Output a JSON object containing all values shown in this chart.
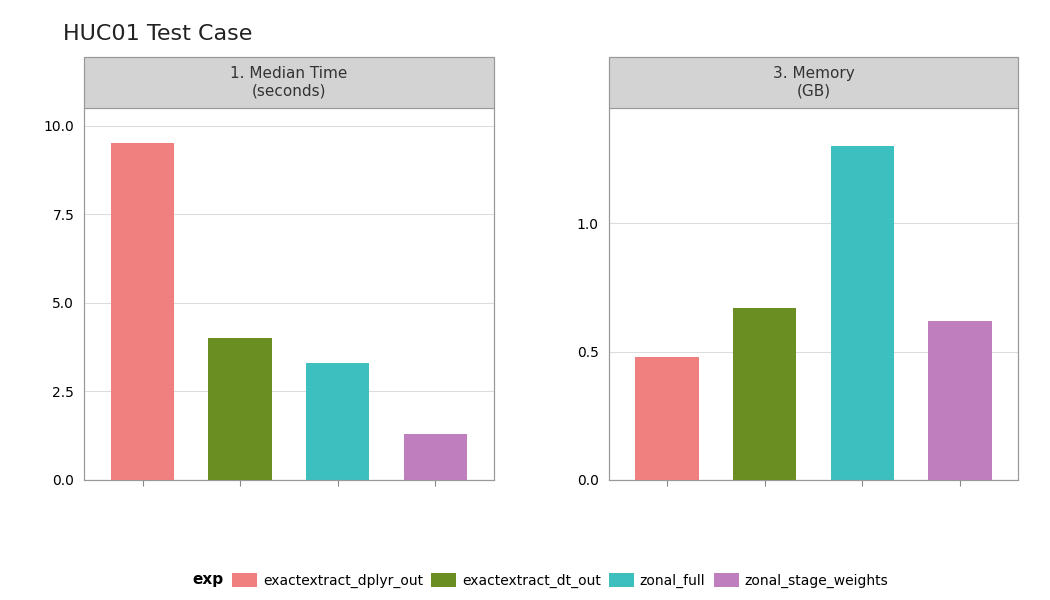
{
  "title": "HUC01 Test Case",
  "panels": [
    {
      "label": "1. Median Time\n(seconds)",
      "values": [
        9.5,
        4.0,
        3.3,
        1.3
      ],
      "ylim": [
        0,
        10.5
      ],
      "yticks": [
        0.0,
        2.5,
        5.0,
        7.5,
        10.0
      ]
    },
    {
      "label": "3. Memory\n(GB)",
      "values": [
        0.48,
        0.67,
        1.3,
        0.62
      ],
      "ylim": [
        0,
        1.45
      ],
      "yticks": [
        0.0,
        0.5,
        1.0
      ]
    }
  ],
  "categories": [
    "exactextract_dplyr_out",
    "exactextract_dt_out",
    "zonal_full",
    "zonal_stage_weights"
  ],
  "colors": [
    "#F08080",
    "#6B8E23",
    "#3DBFBF",
    "#BF7FBF"
  ],
  "legend_label": "exp",
  "background_color": "#FFFFFF",
  "panel_header_color": "#D3D3D3",
  "panel_border_color": "#999999",
  "grid_color": "#DDDDDD",
  "bar_width": 0.65
}
